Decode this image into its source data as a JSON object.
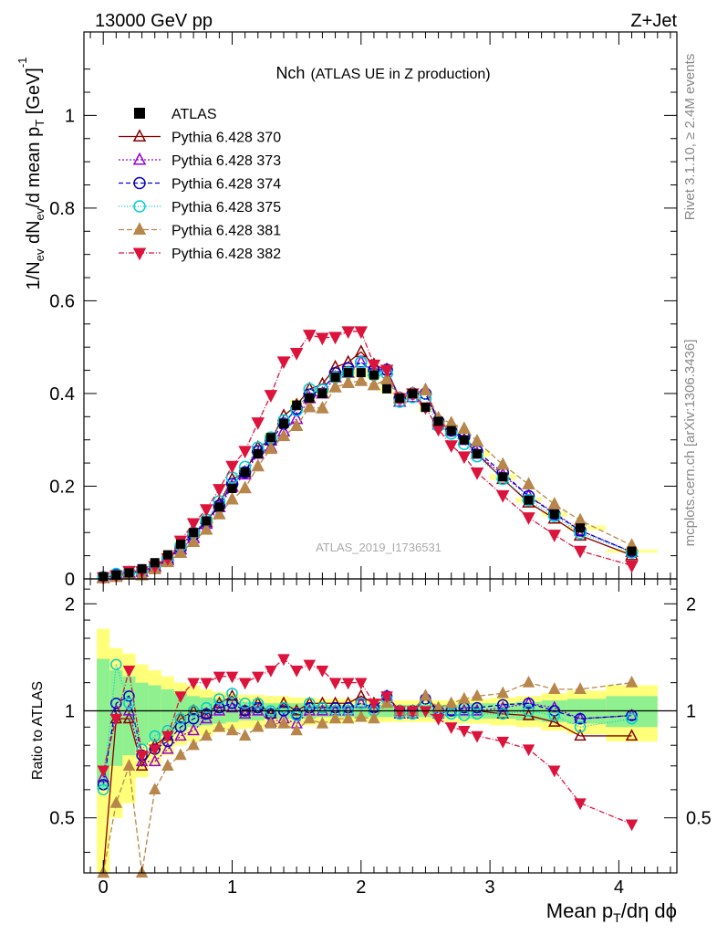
{
  "header": {
    "left": "13000 GeV pp",
    "right": "Z+Jet"
  },
  "side_labels": {
    "rivet": "Rivet 3.1.10, ≥ 2.4M events",
    "mcplots": "mcplots.cern.ch [arXiv:1306.3436]"
  },
  "chart_data": {
    "type": "scatter",
    "title": "Nch",
    "subtitle": "(ATLAS UE in Z production)",
    "watermark": "ATLAS_2019_I1736531",
    "ylabel_parts": [
      "1/N",
      "ev",
      " dN",
      "ev",
      "/d mean p",
      "T",
      " [GeV]",
      "-1"
    ],
    "xlabel_parts": [
      "Mean p",
      "T",
      "/dη dϕ"
    ],
    "ratio_ylabel": "Ratio to ATLAS",
    "xlim": [
      -0.15,
      4.45
    ],
    "ylim": [
      0,
      1.18
    ],
    "ratio_ylim": [
      0.35,
      2.35
    ],
    "ratio_log": true,
    "x_ticks": [
      0,
      1,
      2,
      3,
      4
    ],
    "y_ticks": [
      0,
      0.2,
      0.4,
      0.6,
      0.8,
      1
    ],
    "y_tick_labels": [
      "0",
      "0.2",
      "0.4",
      "0.6",
      "0.8",
      "1"
    ],
    "ratio_ticks": [
      0.5,
      1,
      2
    ],
    "ratio_tick_labels": [
      "0.5",
      "1",
      "2"
    ],
    "legend_position": "top-left",
    "x": [
      0.0,
      0.1,
      0.2,
      0.3,
      0.4,
      0.5,
      0.6,
      0.7,
      0.8,
      0.9,
      1.0,
      1.1,
      1.2,
      1.3,
      1.4,
      1.5,
      1.6,
      1.7,
      1.8,
      1.9,
      2.0,
      2.1,
      2.2,
      2.3,
      2.4,
      2.5,
      2.6,
      2.7,
      2.8,
      2.9,
      3.1,
      3.3,
      3.5,
      3.7,
      4.1
    ],
    "data": {
      "name": "ATLAS",
      "values": [
        0.005,
        0.008,
        0.013,
        0.022,
        0.035,
        0.052,
        0.075,
        0.1,
        0.125,
        0.155,
        0.195,
        0.23,
        0.27,
        0.305,
        0.335,
        0.375,
        0.39,
        0.4,
        0.435,
        0.445,
        0.445,
        0.44,
        0.41,
        0.39,
        0.4,
        0.37,
        0.34,
        0.32,
        0.3,
        0.27,
        0.22,
        0.17,
        0.14,
        0.11,
        0.06
      ],
      "band_total": [
        0.7,
        0.5,
        0.45,
        0.35,
        0.3,
        0.25,
        0.2,
        0.18,
        0.15,
        0.13,
        0.12,
        0.11,
        0.11,
        0.1,
        0.1,
        0.09,
        0.09,
        0.08,
        0.08,
        0.08,
        0.07,
        0.07,
        0.07,
        0.07,
        0.07,
        0.07,
        0.07,
        0.07,
        0.08,
        0.08,
        0.09,
        0.1,
        0.12,
        0.14,
        0.18
      ],
      "band_stat": [
        0.4,
        0.3,
        0.25,
        0.2,
        0.18,
        0.15,
        0.12,
        0.1,
        0.09,
        0.08,
        0.07,
        0.06,
        0.06,
        0.05,
        0.05,
        0.05,
        0.05,
        0.04,
        0.04,
        0.04,
        0.04,
        0.04,
        0.04,
        0.04,
        0.04,
        0.04,
        0.04,
        0.04,
        0.05,
        0.05,
        0.05,
        0.06,
        0.07,
        0.08,
        0.1
      ]
    },
    "series": [
      {
        "name": "Pythia 6.428 370",
        "color": "#8b0000",
        "marker": "triangle-up-open",
        "dash": "",
        "ratio": [
          0.35,
          0.95,
          0.95,
          0.7,
          0.8,
          0.85,
          0.95,
          1.0,
          0.98,
          1.05,
          1.1,
          1.0,
          1.05,
          0.98,
          1.05,
          1.0,
          1.05,
          1.05,
          1.05,
          1.05,
          1.1,
          1.05,
          1.1,
          1.0,
          1.0,
          1.1,
          1.0,
          1.0,
          1.0,
          1.0,
          0.98,
          0.97,
          0.93,
          0.85,
          0.85
        ]
      },
      {
        "name": "Pythia 6.428 373",
        "color": "#9400d3",
        "marker": "triangle-up-open",
        "dash": "2,2",
        "ratio": [
          0.65,
          1.0,
          1.0,
          0.72,
          0.72,
          0.78,
          0.85,
          0.88,
          0.95,
          1.0,
          1.02,
          0.98,
          1.0,
          0.93,
          0.95,
          0.92,
          1.0,
          1.0,
          1.0,
          1.0,
          1.05,
          1.02,
          1.1,
          0.98,
          0.98,
          1.1,
          0.98,
          1.0,
          1.0,
          1.0,
          1.02,
          1.05,
          1.02,
          0.95,
          0.97
        ]
      },
      {
        "name": "Pythia 6.428 374",
        "color": "#0000cd",
        "marker": "circle-open",
        "dash": "5,3",
        "ratio": [
          0.62,
          1.05,
          1.1,
          0.75,
          0.78,
          0.82,
          0.9,
          0.95,
          0.98,
          1.02,
          1.05,
          1.0,
          1.02,
          0.98,
          1.0,
          0.98,
          1.02,
          1.02,
          1.02,
          1.02,
          1.05,
          1.02,
          1.1,
          1.0,
          1.0,
          1.08,
          1.0,
          1.0,
          1.02,
          1.02,
          1.04,
          1.05,
          1.0,
          0.95,
          0.97
        ]
      },
      {
        "name": "Pythia 6.428 375",
        "color": "#00ced1",
        "marker": "circle-open",
        "dash": "1,2",
        "ratio": [
          0.6,
          1.35,
          1.05,
          0.78,
          0.85,
          0.88,
          0.95,
          1.0,
          1.02,
          1.08,
          1.12,
          1.05,
          1.05,
          1.0,
          1.02,
          0.97,
          1.05,
          1.02,
          1.0,
          1.0,
          1.05,
          1.0,
          1.08,
          0.98,
          0.98,
          1.05,
          0.97,
          0.98,
          0.97,
          0.98,
          0.98,
          1.0,
          0.97,
          0.9,
          0.95
        ]
      },
      {
        "name": "Pythia 6.428 381",
        "color": "#b8864b",
        "marker": "triangle-up-filled",
        "dash": "6,3",
        "ratio": [
          0.3,
          0.55,
          0.7,
          0.35,
          0.6,
          0.7,
          0.75,
          0.8,
          0.85,
          0.9,
          0.88,
          0.85,
          0.9,
          0.92,
          0.92,
          0.88,
          0.95,
          0.92,
          0.95,
          0.95,
          0.96,
          0.95,
          1.05,
          1.0,
          1.0,
          1.1,
          1.02,
          1.05,
          1.08,
          1.1,
          1.12,
          1.2,
          1.15,
          1.15,
          1.2
        ]
      },
      {
        "name": "Pythia 6.428 382",
        "color": "#dc143c",
        "marker": "triangle-down-filled",
        "dash": "6,2,1,2",
        "ratio": [
          0.68,
          0.95,
          1.3,
          0.75,
          0.78,
          0.85,
          1.1,
          1.2,
          1.2,
          1.25,
          1.25,
          1.2,
          1.25,
          1.3,
          1.4,
          1.3,
          1.35,
          1.3,
          1.2,
          1.2,
          1.2,
          1.05,
          1.1,
          1.0,
          1.0,
          1.0,
          0.95,
          0.9,
          0.88,
          0.85,
          0.82,
          0.78,
          0.68,
          0.55,
          0.48
        ]
      }
    ]
  }
}
